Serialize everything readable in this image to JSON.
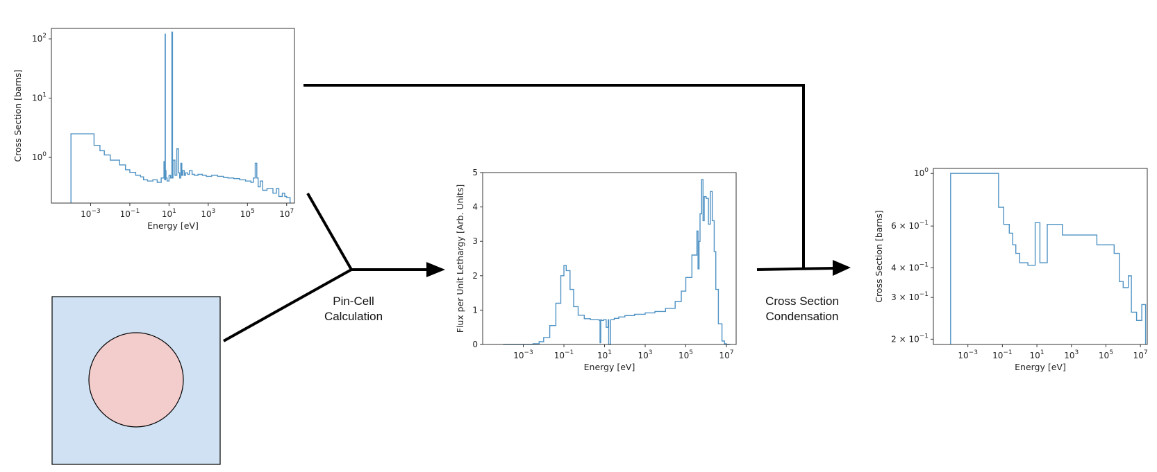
{
  "colors": {
    "series": "#4f92c4",
    "moderator": "#cfe1f2",
    "fuel": "#f3cccc",
    "outline": "#000000"
  },
  "labels": {
    "pin_cell_line1": "Pin-Cell",
    "pin_cell_line2": "Calculation",
    "condensation_line1": "Cross Section",
    "condensation_line2": "Condensation"
  },
  "chart_data": [
    {
      "id": "xs-fine",
      "type": "line",
      "title": "",
      "xlabel": "Energy [eV]",
      "ylabel": "Cross Section [barns]",
      "xscale": "log",
      "yscale": "log",
      "xlim": [
        1e-05,
        25000000.0
      ],
      "ylim": [
        0.17,
        150
      ],
      "xticks": [
        {
          "base": "10",
          "exp": "−3",
          "v": 0.001
        },
        {
          "base": "10",
          "exp": "−1",
          "v": 0.1
        },
        {
          "base": "10",
          "exp": "1",
          "v": 10
        },
        {
          "base": "10",
          "exp": "3",
          "v": 1000
        },
        {
          "base": "10",
          "exp": "5",
          "v": 100000
        },
        {
          "base": "10",
          "exp": "7",
          "v": 10000000
        }
      ],
      "yticks": [
        {
          "base": "10",
          "exp": "0",
          "v": 1
        },
        {
          "base": "10",
          "exp": "1",
          "v": 10
        },
        {
          "base": "10",
          "exp": "2",
          "v": 100
        }
      ],
      "series": [
        {
          "x": [
            0.0001,
            0.0001,
            0.0015,
            0.0015,
            0.003,
            0.005,
            0.01,
            0.03,
            0.06,
            0.1,
            0.2,
            0.35,
            0.5,
            0.8,
            1.5,
            2.5,
            4,
            5.5,
            6,
            6.3,
            6.5,
            6.7,
            7,
            8,
            10,
            12,
            14,
            15,
            16,
            20,
            25,
            30,
            35,
            40,
            45,
            50,
            60,
            70,
            90,
            110,
            150,
            200,
            300,
            500,
            800,
            1500,
            3000,
            6000,
            10000,
            20000,
            40000,
            80000,
            150000,
            200000,
            250000,
            300000,
            350000,
            450000,
            600000,
            1000000,
            2000000,
            3000000,
            4000000,
            6000000,
            8000000,
            10000000,
            15000000,
            15000000
          ],
          "y": [
            0.17,
            2.5,
            2.5,
            1.6,
            1.3,
            1.1,
            0.9,
            0.75,
            0.62,
            0.56,
            0.5,
            0.47,
            0.42,
            0.4,
            0.42,
            0.38,
            0.45,
            0.85,
            0.42,
            120,
            0.42,
            0.6,
            0.45,
            0.4,
            0.5,
            0.45,
            130,
            0.45,
            0.9,
            0.5,
            1.4,
            0.55,
            0.45,
            0.8,
            0.5,
            0.6,
            0.5,
            0.55,
            0.52,
            0.6,
            0.52,
            0.5,
            0.52,
            0.5,
            0.48,
            0.5,
            0.48,
            0.46,
            0.45,
            0.44,
            0.42,
            0.4,
            0.38,
            0.45,
            0.8,
            0.45,
            0.32,
            0.4,
            0.28,
            0.3,
            0.25,
            0.3,
            0.22,
            0.25,
            0.22,
            0.21,
            0.21,
            0.17
          ]
        }
      ]
    },
    {
      "id": "flux",
      "type": "line",
      "title": "",
      "xlabel": "Energy [eV]",
      "ylabel": "Flux per Unit Lethargy [Arb. Units]",
      "xscale": "log",
      "yscale": "linear",
      "xlim": [
        1e-05,
        30000000.0
      ],
      "ylim": [
        0,
        5
      ],
      "xticks": [
        {
          "base": "10",
          "exp": "−3",
          "v": 0.001
        },
        {
          "base": "10",
          "exp": "−1",
          "v": 0.1
        },
        {
          "base": "10",
          "exp": "1",
          "v": 10
        },
        {
          "base": "10",
          "exp": "3",
          "v": 1000
        },
        {
          "base": "10",
          "exp": "5",
          "v": 100000
        },
        {
          "base": "10",
          "exp": "7",
          "v": 10000000
        }
      ],
      "yticks": [
        {
          "label": "0",
          "v": 0
        },
        {
          "label": "1",
          "v": 1
        },
        {
          "label": "2",
          "v": 2
        },
        {
          "label": "3",
          "v": 3
        },
        {
          "label": "4",
          "v": 4
        },
        {
          "label": "5",
          "v": 5
        }
      ],
      "series": [
        {
          "x": [
            0.0001,
            0.001,
            0.003,
            0.006,
            0.01,
            0.02,
            0.04,
            0.07,
            0.1,
            0.13,
            0.2,
            0.3,
            0.5,
            1,
            2,
            4,
            5.5,
            6,
            6.5,
            7,
            9,
            12,
            15,
            16,
            20,
            30,
            50,
            100,
            300,
            1000,
            3000,
            10000,
            30000,
            60000,
            100000,
            200000,
            350000,
            400000,
            450000,
            500000,
            600000,
            700000,
            800000,
            1000000,
            1300000,
            1600000,
            2000000,
            2500000,
            3000000,
            4000000,
            6000000,
            8000000,
            10000000,
            15000000
          ],
          "y": [
            0,
            0,
            0.02,
            0.08,
            0.2,
            0.55,
            1.2,
            2.0,
            2.3,
            2.15,
            1.6,
            1.1,
            0.85,
            0.75,
            0.72,
            0.72,
            0.7,
            0.05,
            0.72,
            0.7,
            0.72,
            0.5,
            0.72,
            0.0,
            0.72,
            0.76,
            0.8,
            0.84,
            0.88,
            0.92,
            0.96,
            1.05,
            1.25,
            1.55,
            1.95,
            2.6,
            3.3,
            2.2,
            3.0,
            3.8,
            4.8,
            3.6,
            4.3,
            4.25,
            3.5,
            4.45,
            3.6,
            2.7,
            1.6,
            0.6,
            0.1,
            0.02,
            0,
            0
          ]
        }
      ]
    },
    {
      "id": "xs-condensed",
      "type": "line",
      "title": "",
      "xlabel": "Energy [eV]",
      "ylabel": "Cross Section [barns]",
      "xscale": "log",
      "yscale": "log",
      "xlim": [
        1e-05,
        25000000.0
      ],
      "ylim": [
        0.19,
        1.05
      ],
      "xticks": [
        {
          "base": "10",
          "exp": "−3",
          "v": 0.001
        },
        {
          "base": "10",
          "exp": "−1",
          "v": 0.1
        },
        {
          "base": "10",
          "exp": "1",
          "v": 10
        },
        {
          "base": "10",
          "exp": "3",
          "v": 1000
        },
        {
          "base": "10",
          "exp": "5",
          "v": 100000
        },
        {
          "base": "10",
          "exp": "7",
          "v": 10000000
        }
      ],
      "yticks": [
        {
          "base": "2 × 10",
          "exp": "−1",
          "v": 0.2
        },
        {
          "base": "3 × 10",
          "exp": "−1",
          "v": 0.3
        },
        {
          "base": "4 × 10",
          "exp": "−1",
          "v": 0.4
        },
        {
          "base": "6 × 10",
          "exp": "−1",
          "v": 0.6
        },
        {
          "base": "10",
          "exp": "0",
          "v": 1.0
        }
      ],
      "series": [
        {
          "x": [
            0.0001,
            0.0001,
            0.03,
            0.06,
            0.12,
            0.25,
            0.4,
            0.6,
            1.0,
            3.0,
            8.0,
            15,
            40,
            300,
            5000,
            30000,
            300000,
            600000,
            1000000,
            2000000,
            3000000,
            6000000,
            12000000,
            20000000,
            20000000
          ],
          "y": [
            0.19,
            1.0,
            1.0,
            0.72,
            0.61,
            0.56,
            0.5,
            0.46,
            0.42,
            0.41,
            0.62,
            0.42,
            0.61,
            0.55,
            0.55,
            0.5,
            0.46,
            0.35,
            0.33,
            0.37,
            0.26,
            0.24,
            0.28,
            0.2,
            0.19
          ]
        }
      ]
    }
  ]
}
